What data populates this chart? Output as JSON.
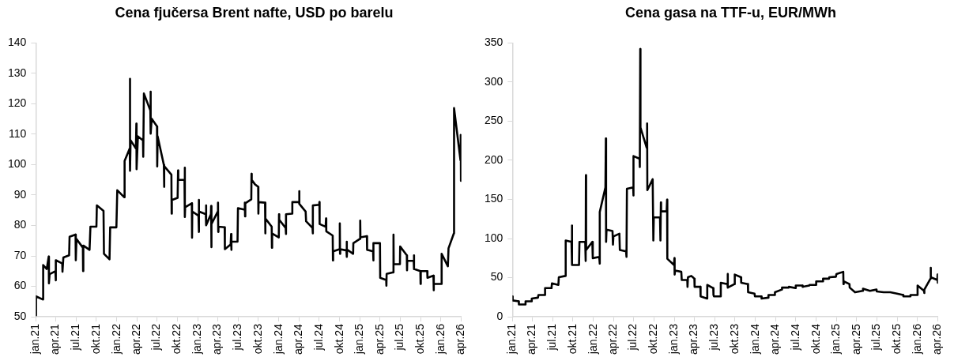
{
  "chart_data": [
    {
      "type": "line",
      "title": "Cena fjučersa Brent nafte, USD po barelu",
      "color": "#000000",
      "marker": "none",
      "line_style": "solid",
      "x": [
        "2021-01-01",
        "2021-01-02",
        "2021-02-01",
        "2021-02-03",
        "2021-02-19",
        "2021-02-28",
        "2021-03-01",
        "2021-03-04",
        "2021-03-30",
        "2021-03-31",
        "2021-04-02",
        "2021-04-30",
        "2021-05-01",
        "2021-05-05",
        "2021-05-31",
        "2021-06-02",
        "2021-06-29",
        "2021-06-30",
        "2021-07-03",
        "2021-08-01",
        "2021-08-02",
        "2021-08-03",
        "2021-08-31",
        "2021-09-04",
        "2021-10-01",
        "2021-10-03",
        "2021-11-02",
        "2021-11-04",
        "2021-11-29",
        "2021-12-02",
        "2021-12-30",
        "2022-01-03",
        "2022-02-03",
        "2022-02-05",
        "2022-02-28",
        "2022-03-01",
        "2022-03-02",
        "2022-03-04",
        "2022-03-28",
        "2022-03-30",
        "2022-03-31",
        "2022-04-06",
        "2022-04-29",
        "2022-04-30",
        "2022-05-03",
        "2022-06-01",
        "2022-06-02",
        "2022-06-03",
        "2022-06-07",
        "2022-07-01",
        "2022-07-02",
        "2022-07-04",
        "2022-08-01",
        "2022-08-02",
        "2022-08-03",
        "2022-09-04",
        "2022-09-05",
        "2022-09-06",
        "2022-10-02",
        "2022-10-04",
        "2022-10-05",
        "2022-11-02",
        "2022-11-03",
        "2022-11-04",
        "2022-11-05",
        "2022-12-05",
        "2022-12-06",
        "2022-12-07",
        "2023-01-04",
        "2023-01-05",
        "2023-01-06",
        "2023-01-07",
        "2023-02-06",
        "2023-02-07",
        "2023-02-08",
        "2023-03-01",
        "2023-03-02",
        "2023-03-03",
        "2023-03-04",
        "2023-04-01",
        "2023-04-02",
        "2023-04-03",
        "2023-04-04",
        "2023-05-02",
        "2023-05-03",
        "2023-05-29",
        "2023-05-31",
        "2023-06-01",
        "2023-06-02",
        "2023-06-29",
        "2023-07-01",
        "2023-07-31",
        "2023-08-01",
        "2023-08-02",
        "2023-08-03",
        "2023-08-30",
        "2023-08-31",
        "2023-09-01",
        "2023-09-15",
        "2023-09-30",
        "2023-10-01",
        "2023-10-02",
        "2023-10-31",
        "2023-11-01",
        "2023-11-02",
        "2023-11-30",
        "2023-12-01",
        "2023-12-02",
        "2024-01-01",
        "2024-01-02",
        "2024-01-03",
        "2024-02-01",
        "2024-02-02",
        "2024-02-03",
        "2024-03-01",
        "2024-03-02",
        "2024-04-01",
        "2024-04-02",
        "2024-04-03",
        "2024-05-01",
        "2024-05-03",
        "2024-06-01",
        "2024-06-02",
        "2024-06-03",
        "2024-07-01",
        "2024-07-02",
        "2024-07-03",
        "2024-07-30",
        "2024-08-01",
        "2024-08-02",
        "2024-08-31",
        "2024-09-01",
        "2024-09-02",
        "2024-10-01",
        "2024-10-02",
        "2024-10-03",
        "2024-10-04",
        "2024-11-01",
        "2024-11-02",
        "2024-11-03",
        "2024-11-04",
        "2024-12-01",
        "2024-12-02",
        "2025-01-01",
        "2025-01-02",
        "2025-01-03",
        "2025-02-01",
        "2025-02-02",
        "2025-03-01",
        "2025-03-02",
        "2025-03-03",
        "2025-04-01",
        "2025-04-02",
        "2025-04-29",
        "2025-04-30",
        "2025-05-01",
        "2025-05-31",
        "2025-06-01",
        "2025-06-02",
        "2025-06-30",
        "2025-07-01",
        "2025-07-31",
        "2025-08-01",
        "2025-08-02",
        "2025-08-31",
        "2025-09-01",
        "2025-09-02",
        "2025-09-30",
        "2025-10-01",
        "2025-10-02",
        "2025-10-31",
        "2025-11-01",
        "2025-11-28",
        "2025-11-29",
        "2025-11-30",
        "2026-01-03",
        "2026-01-04",
        "2026-02-01",
        "2026-02-04",
        "2026-02-28",
        "2026-03-01",
        "2026-03-30",
        "2026-03-31",
        "2026-04-01"
      ],
      "values": [
        50.5,
        56.7,
        55.7,
        67,
        65.7,
        69.8,
        61,
        64,
        65,
        62,
        68.6,
        67.5,
        64.8,
        69.5,
        70.2,
        76.3,
        77,
        68.6,
        75.6,
        72.7,
        65,
        73.4,
        72,
        79.6,
        79.6,
        86.6,
        84.8,
        70.7,
        68.9,
        79.4,
        79.4,
        91.6,
        89.3,
        101.2,
        105.3,
        128.2,
        98,
        108,
        105.3,
        113.5,
        98.5,
        109.3,
        108,
        102.6,
        123.4,
        117.8,
        124,
        110.2,
        115.1,
        112.6,
        99.4,
        109.3,
        99.9,
        92.7,
        99.5,
        96.7,
        83.9,
        88.4,
        89.1,
        98.1,
        95,
        95,
        99,
        82.8,
        86,
        87.3,
        76,
        84.6,
        83.2,
        88.4,
        77.9,
        84.6,
        83.7,
        86.6,
        80.1,
        83.7,
        86.4,
        72.9,
        80.5,
        84.6,
        87.5,
        77.9,
        79.6,
        79.4,
        72.2,
        73.8,
        77.2,
        72,
        74.7,
        74.7,
        85.7,
        85.2,
        87.5,
        83,
        87.3,
        88.6,
        97,
        95,
        93.6,
        92.7,
        83.9,
        87.7,
        87.5,
        77.4,
        82.3,
        79.6,
        72.7,
        77.4,
        76.1,
        83.7,
        81.9,
        79.2,
        77.2,
        83.7,
        83.9,
        87.7,
        87.7,
        91.3,
        87.1,
        84.6,
        81.4,
        79.2,
        77.4,
        86.6,
        86.8,
        87.7,
        80.5,
        79.6,
        82.3,
        78.1,
        76.7,
        68.5,
        71.5,
        72.2,
        80.7,
        70.7,
        72.2,
        71.8,
        74.7,
        69.7,
        72.1,
        70.7,
        74.2,
        75.6,
        81.6,
        76.1,
        76.5,
        72,
        71.5,
        68.5,
        74.2,
        74.2,
        62.8,
        62.1,
        60.2,
        64.1,
        64.6,
        77,
        67.3,
        67.3,
        73.1,
        70.2,
        65.3,
        68.4,
        68.4,
        70.2,
        65.7,
        65,
        60.8,
        65,
        65,
        62.8,
        63.5,
        58.7,
        60.8,
        60.8,
        70.7,
        66.6,
        72.5,
        77.4,
        118.6,
        101.4,
        109.8,
        94.7
      ],
      "xlim": [
        "2021-01-01",
        "2026-04-03"
      ],
      "xticks": [
        {
          "value": "2021-01-01",
          "label": "jan.21"
        },
        {
          "value": "2021-04-01",
          "label": "apr.21"
        },
        {
          "value": "2021-07-01",
          "label": "jul.21"
        },
        {
          "value": "2021-10-01",
          "label": "okt.21"
        },
        {
          "value": "2022-01-01",
          "label": "jan.22"
        },
        {
          "value": "2022-04-01",
          "label": "apr.22"
        },
        {
          "value": "2022-07-01",
          "label": "jul.22"
        },
        {
          "value": "2022-10-01",
          "label": "okt.22"
        },
        {
          "value": "2023-01-01",
          "label": "jan.23"
        },
        {
          "value": "2023-04-01",
          "label": "apr.23"
        },
        {
          "value": "2023-07-01",
          "label": "jul.23"
        },
        {
          "value": "2023-10-01",
          "label": "okt.23"
        },
        {
          "value": "2024-01-01",
          "label": "jan.24"
        },
        {
          "value": "2024-04-01",
          "label": "apr.24"
        },
        {
          "value": "2024-07-01",
          "label": "jul.24"
        },
        {
          "value": "2024-10-01",
          "label": "okt.24"
        },
        {
          "value": "2025-01-01",
          "label": "jan.25"
        },
        {
          "value": "2025-04-01",
          "label": "apr.25"
        },
        {
          "value": "2025-07-01",
          "label": "jul.25"
        },
        {
          "value": "2025-10-01",
          "label": "okt.25"
        },
        {
          "value": "2026-01-01",
          "label": "jan.26"
        },
        {
          "value": "2026-04-01",
          "label": "apr.26"
        }
      ],
      "ylim": [
        50,
        140
      ],
      "yticks": [
        50,
        60,
        70,
        80,
        90,
        100,
        110,
        120,
        130,
        140
      ]
    },
    {
      "type": "line",
      "title": "Cena gasa na TTF-u, EUR/MWh",
      "color": "#000000",
      "marker": "none",
      "line_style": "solid",
      "x": [
        "2021-01-01",
        "2021-01-02",
        "2021-01-29",
        "2021-01-30",
        "2021-02-28",
        "2021-03-01",
        "2021-03-27",
        "2021-03-29",
        "2021-04-26",
        "2021-04-28",
        "2021-05-26",
        "2021-05-28",
        "2021-06-26",
        "2021-06-28",
        "2021-07-27",
        "2021-07-29",
        "2021-08-27",
        "2021-08-29",
        "2021-09-24",
        "2021-09-26",
        "2021-09-27",
        "2021-10-28",
        "2021-10-30",
        "2021-11-25",
        "2021-11-27",
        "2021-11-28",
        "2021-11-29",
        "2021-12-27",
        "2021-12-29",
        "2022-01-27",
        "2022-01-29",
        "2022-01-30",
        "2022-02-24",
        "2022-02-26",
        "2022-02-27",
        "2022-03-01",
        "2022-03-28",
        "2022-03-30",
        "2022-04-01",
        "2022-04-28",
        "2022-04-30",
        "2022-05-28",
        "2022-05-30",
        "2022-06-01",
        "2022-06-29",
        "2022-06-30",
        "2022-07-01",
        "2022-07-28",
        "2022-07-29",
        "2022-07-31",
        "2022-08-01",
        "2022-08-29",
        "2022-08-31",
        "2022-09-01",
        "2022-09-25",
        "2022-09-28",
        "2022-09-30",
        "2022-10-28",
        "2022-10-30",
        "2022-11-01",
        "2022-11-02",
        "2022-11-27",
        "2022-11-29",
        "2022-11-30",
        "2022-12-30",
        "2023-01-01",
        "2023-01-02",
        "2023-01-04",
        "2023-02-01",
        "2023-02-03",
        "2023-02-28",
        "2023-03-01",
        "2023-03-03",
        "2023-03-18",
        "2023-03-25",
        "2023-04-01",
        "2023-04-02",
        "2023-04-28",
        "2023-04-29",
        "2023-05-28",
        "2023-05-29",
        "2023-06-25",
        "2023-06-26",
        "2023-06-28",
        "2023-07-28",
        "2023-07-29",
        "2023-08-28",
        "2023-08-29",
        "2023-08-30",
        "2023-09-29",
        "2023-09-30",
        "2023-10-28",
        "2023-10-29",
        "2023-11-28",
        "2023-11-29",
        "2023-12-28",
        "2023-12-30",
        "2024-01-28",
        "2024-01-29",
        "2024-02-28",
        "2024-02-29",
        "2024-03-28",
        "2024-03-29",
        "2024-04-29",
        "2024-04-30",
        "2024-05-30",
        "2024-05-31",
        "2024-06-30",
        "2024-07-01",
        "2024-07-31",
        "2024-08-01",
        "2024-08-31",
        "2024-09-01",
        "2024-09-30",
        "2024-10-01",
        "2024-10-31",
        "2024-11-01",
        "2024-11-28",
        "2024-11-29",
        "2024-12-29",
        "2024-12-31",
        "2025-01-31",
        "2025-02-01",
        "2025-02-02",
        "2025-02-28",
        "2025-03-01",
        "2025-03-25",
        "2025-04-28",
        "2025-04-30",
        "2025-05-31",
        "2025-06-30",
        "2025-07-01",
        "2025-08-01",
        "2025-08-31",
        "2025-09-30",
        "2025-10-28",
        "2025-10-29",
        "2025-11-28",
        "2025-11-30",
        "2025-12-31",
        "2026-01-01",
        "2026-01-30",
        "2026-01-31",
        "2026-02-01",
        "2026-02-28",
        "2026-03-01",
        "2026-03-02",
        "2026-03-31",
        "2026-04-01",
        "2026-04-02"
      ],
      "values": [
        26.1,
        20.9,
        19.8,
        15.7,
        15.7,
        19.8,
        19.8,
        23.3,
        24.4,
        27.9,
        27.9,
        36.6,
        36.6,
        42.8,
        40.7,
        50.5,
        52.2,
        97.5,
        95.8,
        116.6,
        66.2,
        66.2,
        95.8,
        95.8,
        71.4,
        181,
        85.3,
        95.8,
        74.9,
        76.6,
        67.9,
        134,
        165.4,
        228,
        95.8,
        111.4,
        109.7,
        92.3,
        102.7,
        106.2,
        85.3,
        83.6,
        76.6,
        163.6,
        165.4,
        155,
        205.4,
        202,
        191.5,
        342.3,
        242,
        215.9,
        247.2,
        161.9,
        175.8,
        97.5,
        127,
        127,
        97.5,
        146.2,
        134.7,
        134.7,
        149.7,
        74.2,
        66.2,
        74.9,
        54,
        59.2,
        57.5,
        47,
        47,
        38.3,
        50.5,
        52.2,
        50.5,
        48.7,
        38.3,
        38.3,
        26.1,
        23.3,
        40.7,
        36.6,
        27.9,
        26.1,
        26.1,
        43.5,
        41.8,
        54.7,
        37.3,
        41.8,
        54,
        50.5,
        43.5,
        41.8,
        31.3,
        29.6,
        26.1,
        26.1,
        23.3,
        24.4,
        27.9,
        27.9,
        31.3,
        34.8,
        37.3,
        37.3,
        38.3,
        36.6,
        40,
        40,
        38.3,
        40,
        40.7,
        40.7,
        45.3,
        45.3,
        48.7,
        48.7,
        50.5,
        51.2,
        54.7,
        57.5,
        41.8,
        45.3,
        41.8,
        37.3,
        31.3,
        33.1,
        35.9,
        33.1,
        34.8,
        32.4,
        31.3,
        31.3,
        29.6,
        27.9,
        26.1,
        26.1,
        27.9,
        27.9,
        40,
        33.1,
        30.3,
        34.8,
        48.7,
        62.7,
        50.5,
        47,
        54,
        43.5
      ],
      "xlim": [
        "2021-01-01",
        "2026-04-03"
      ],
      "xticks": [
        {
          "value": "2021-01-01",
          "label": "jan.21"
        },
        {
          "value": "2021-04-01",
          "label": "apr.21"
        },
        {
          "value": "2021-07-01",
          "label": "jul.21"
        },
        {
          "value": "2021-10-01",
          "label": "okt.21"
        },
        {
          "value": "2022-01-01",
          "label": "jan.22"
        },
        {
          "value": "2022-04-01",
          "label": "apr.22"
        },
        {
          "value": "2022-07-01",
          "label": "jul.22"
        },
        {
          "value": "2022-10-01",
          "label": "okt.22"
        },
        {
          "value": "2023-01-01",
          "label": "jan.23"
        },
        {
          "value": "2023-04-01",
          "label": "apr.23"
        },
        {
          "value": "2023-07-01",
          "label": "jul.23"
        },
        {
          "value": "2023-10-01",
          "label": "okt.23"
        },
        {
          "value": "2024-01-01",
          "label": "jan.24"
        },
        {
          "value": "2024-04-01",
          "label": "apr.24"
        },
        {
          "value": "2024-07-01",
          "label": "jul.24"
        },
        {
          "value": "2024-10-01",
          "label": "okt.24"
        },
        {
          "value": "2025-01-01",
          "label": "jan.25"
        },
        {
          "value": "2025-04-01",
          "label": "apr.25"
        },
        {
          "value": "2025-07-01",
          "label": "jul.25"
        },
        {
          "value": "2025-10-01",
          "label": "okt.25"
        },
        {
          "value": "2026-01-01",
          "label": "jan.26"
        },
        {
          "value": "2026-04-01",
          "label": "apr.26"
        }
      ],
      "ylim": [
        0,
        350
      ],
      "yticks": [
        0,
        50,
        100,
        150,
        200,
        250,
        300,
        350
      ]
    }
  ]
}
